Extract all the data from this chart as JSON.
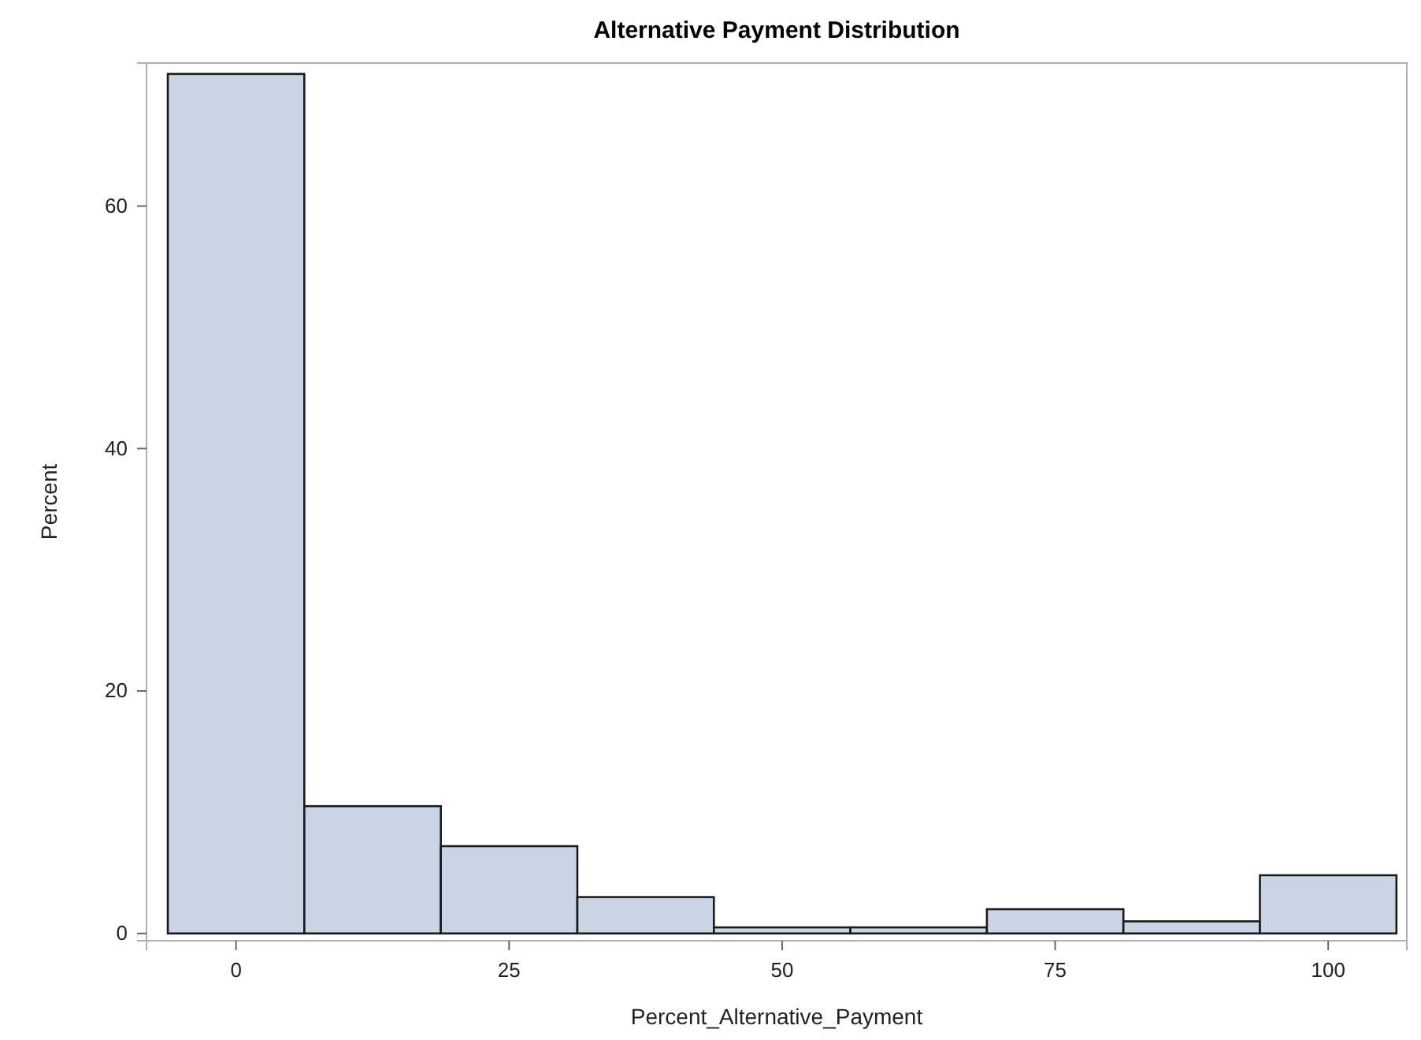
{
  "chart_data": {
    "type": "histogram",
    "title": "Alternative Payment Distribution",
    "xlabel": "Percent_Alternative_Payment",
    "ylabel": "Percent",
    "bins": [
      -6.25,
      6.25,
      18.75,
      31.25,
      43.75,
      56.25,
      68.75,
      81.25,
      93.75,
      106.25
    ],
    "values": [
      70.9,
      10.5,
      7.2,
      3.0,
      0.5,
      0.5,
      2.0,
      1.0,
      4.8
    ],
    "color": "#c9d5e5",
    "xlim": [
      -8.2,
      107.2
    ],
    "xticks": [
      0,
      25,
      50,
      75,
      100
    ],
    "ylim": [
      -0.6,
      71.8
    ],
    "yticks": [
      0,
      20,
      40,
      60
    ],
    "grid": false
  }
}
